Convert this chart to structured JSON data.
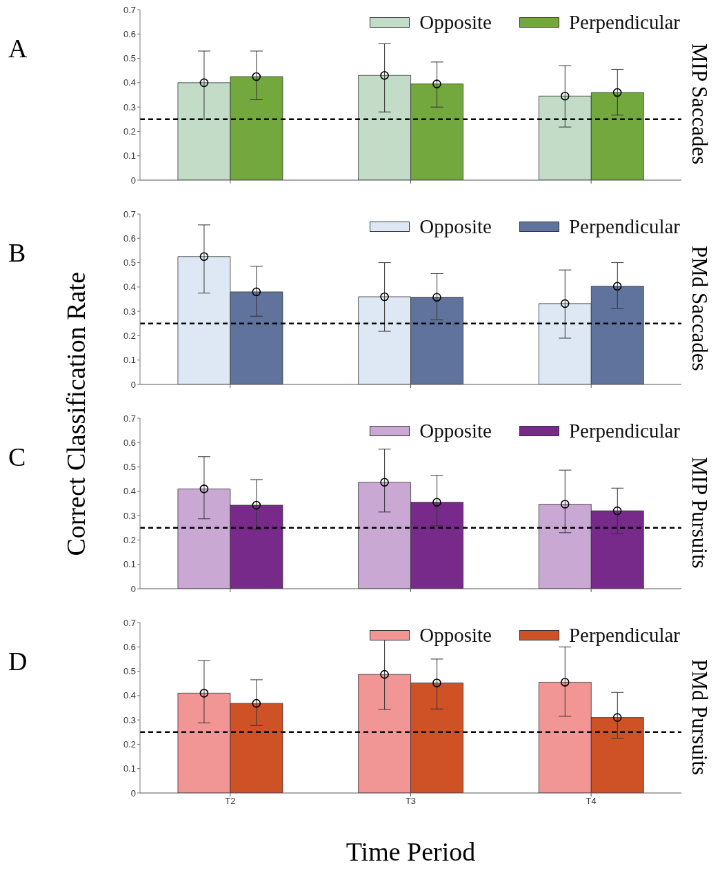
{
  "chart_data": [
    {
      "type": "bar",
      "ylabel": "Correct Classification Rate",
      "annotations": [
        "A",
        "MIP Saccades"
      ],
      "categories": [
        "T2",
        "T3",
        "T4"
      ],
      "ylim": [
        0,
        0.7
      ],
      "yticks": [
        0,
        0.1,
        0.2,
        0.3,
        0.4,
        0.5,
        0.6,
        0.7
      ],
      "tick_labels": "y",
      "legend": "top right",
      "grid": false,
      "series": [
        {
          "name": "Opposite",
          "color": "#c2dcc8",
          "values": [
            0.4,
            0.43,
            0.345
          ],
          "errors": [
            [
              0.25,
              0.53
            ],
            [
              0.28,
              0.56
            ],
            [
              0.218,
              0.47
            ]
          ]
        },
        {
          "name": "Perpendicular",
          "color": "#72a83e",
          "values": [
            0.425,
            0.395,
            0.36
          ],
          "errors": [
            [
              0.33,
              0.53
            ],
            [
              0.3,
              0.485
            ],
            [
              0.267,
              0.455
            ]
          ]
        },
        {
          "type": "scatter",
          "marker": "circle",
          "color": "#000000",
          "x": [
            "T2",
            "T3",
            "T4"
          ],
          "values": [
            0.4,
            0.43,
            0.345
          ]
        },
        {
          "type": "scatter",
          "marker": "circle",
          "color": "#000000",
          "x": [
            "T2",
            "T3",
            "T4"
          ],
          "values": [
            0.425,
            0.395,
            0.36
          ]
        }
      ],
      "ref_lines": [
        {
          "axis": "y",
          "value": 0.25,
          "color": "#000000",
          "line_style": "dashed"
        }
      ]
    },
    {
      "type": "bar",
      "annotations": [
        "B",
        "PMd Saccades"
      ],
      "categories": [
        "T2",
        "T3",
        "T4"
      ],
      "ylim": [
        0,
        0.7
      ],
      "yticks": [
        0,
        0.1,
        0.2,
        0.3,
        0.4,
        0.5,
        0.6,
        0.7
      ],
      "tick_labels": "y",
      "legend": "top right",
      "grid": false,
      "series": [
        {
          "name": "Opposite",
          "color": "#dde8f4",
          "values": [
            0.525,
            0.36,
            0.332
          ],
          "errors": [
            [
              0.375,
              0.655
            ],
            [
              0.218,
              0.5
            ],
            [
              0.19,
              0.47
            ]
          ]
        },
        {
          "name": "Perpendicular",
          "color": "#5f739c",
          "values": [
            0.38,
            0.358,
            0.403
          ],
          "errors": [
            [
              0.28,
              0.485
            ],
            [
              0.265,
              0.455
            ],
            [
              0.313,
              0.5
            ]
          ]
        },
        {
          "type": "scatter",
          "marker": "circle",
          "color": "#000000",
          "x": [
            "T2",
            "T3",
            "T4"
          ],
          "values": [
            0.525,
            0.36,
            0.332
          ]
        },
        {
          "type": "scatter",
          "marker": "circle",
          "color": "#000000",
          "x": [
            "T2",
            "T3",
            "T4"
          ],
          "values": [
            0.38,
            0.358,
            0.403
          ]
        }
      ],
      "ref_lines": [
        {
          "axis": "y",
          "value": 0.25,
          "color": "#000000",
          "line_style": "dashed"
        }
      ]
    },
    {
      "type": "bar",
      "annotations": [
        "C",
        "MIP Pursuits"
      ],
      "categories": [
        "T2",
        "T3",
        "T4"
      ],
      "ylim": [
        0,
        0.7
      ],
      "yticks": [
        0,
        0.1,
        0.2,
        0.3,
        0.4,
        0.5,
        0.6,
        0.7
      ],
      "tick_labels": "y",
      "legend": "top right",
      "grid": false,
      "series": [
        {
          "name": "Opposite",
          "color": "#c9a9d4",
          "values": [
            0.41,
            0.437,
            0.347
          ],
          "errors": [
            [
              0.287,
              0.542
            ],
            [
              0.315,
              0.573
            ],
            [
              0.23,
              0.487
            ]
          ]
        },
        {
          "name": "Perpendicular",
          "color": "#772a89",
          "values": [
            0.343,
            0.355,
            0.32
          ],
          "errors": [
            [
              0.243,
              0.448
            ],
            [
              0.258,
              0.465
            ],
            [
              0.225,
              0.413
            ]
          ]
        },
        {
          "type": "scatter",
          "marker": "circle",
          "color": "#000000",
          "x": [
            "T2",
            "T3",
            "T4"
          ],
          "values": [
            0.41,
            0.437,
            0.347
          ]
        },
        {
          "type": "scatter",
          "marker": "circle",
          "color": "#000000",
          "x": [
            "T2",
            "T3",
            "T4"
          ],
          "values": [
            0.343,
            0.355,
            0.32
          ]
        }
      ],
      "ref_lines": [
        {
          "axis": "y",
          "value": 0.25,
          "color": "#000000",
          "line_style": "dashed"
        }
      ]
    },
    {
      "type": "bar",
      "xlabel": "Time Period",
      "annotations": [
        "D",
        "PMd Pursuits"
      ],
      "categories": [
        "T2",
        "T3",
        "T4"
      ],
      "ylim": [
        0,
        0.7
      ],
      "yticks": [
        0,
        0.1,
        0.2,
        0.3,
        0.4,
        0.5,
        0.6,
        0.7
      ],
      "legend": "top right",
      "grid": false,
      "series": [
        {
          "name": "Opposite",
          "color": "#f29595",
          "values": [
            0.41,
            0.487,
            0.455
          ],
          "errors": [
            [
              0.288,
              0.543
            ],
            [
              0.343,
              0.628
            ],
            [
              0.315,
              0.6
            ]
          ]
        },
        {
          "name": "Perpendicular",
          "color": "#cf5226",
          "values": [
            0.368,
            0.452,
            0.31
          ],
          "errors": [
            [
              0.277,
              0.465
            ],
            [
              0.345,
              0.55
            ],
            [
              0.225,
              0.413
            ]
          ]
        },
        {
          "type": "scatter",
          "marker": "circle",
          "color": "#000000",
          "x": [
            "T2",
            "T3",
            "T4"
          ],
          "values": [
            0.41,
            0.487,
            0.455
          ]
        },
        {
          "type": "scatter",
          "marker": "circle",
          "color": "#000000",
          "x": [
            "T2",
            "T3",
            "T4"
          ],
          "values": [
            0.368,
            0.452,
            0.31
          ]
        }
      ],
      "ref_lines": [
        {
          "axis": "y",
          "value": 0.25,
          "color": "#000000",
          "line_style": "dashed"
        }
      ]
    }
  ]
}
